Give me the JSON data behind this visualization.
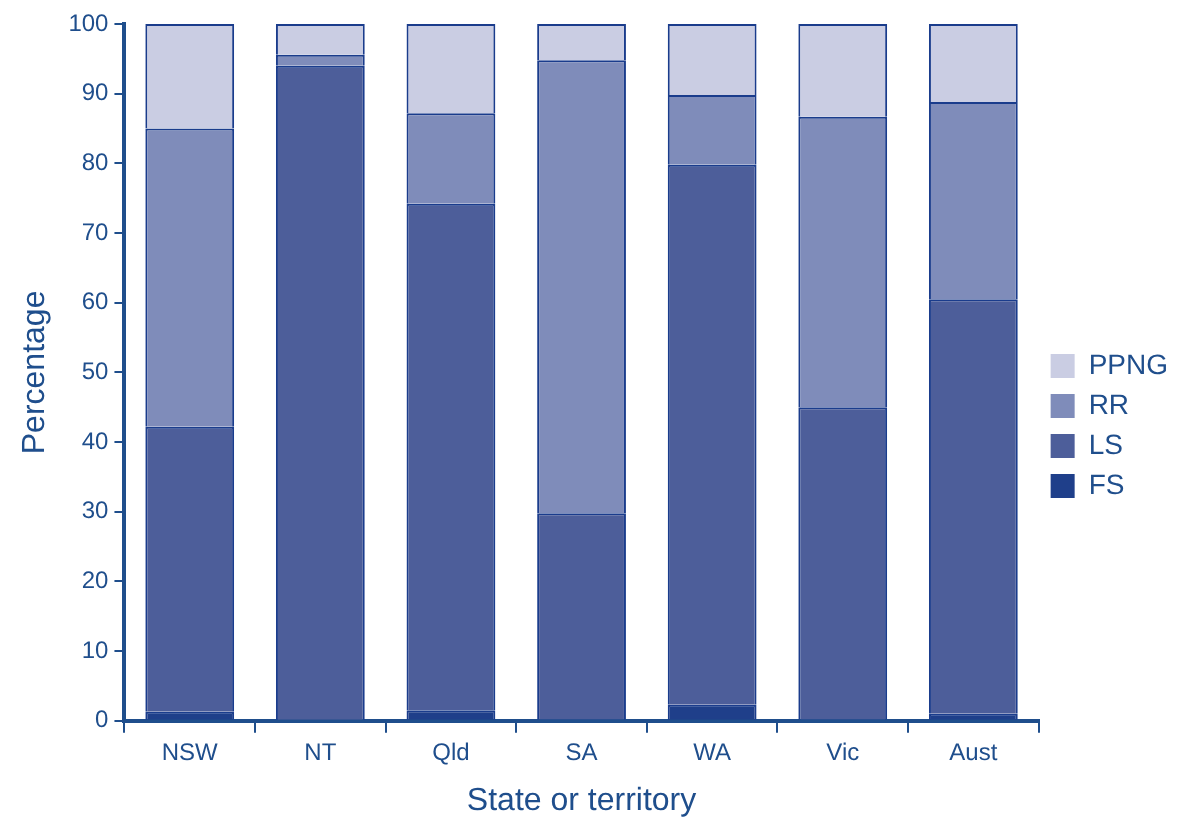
{
  "chart_data": {
    "type": "bar",
    "stacked": true,
    "xlabel": "State or territory",
    "ylabel": "Percentage",
    "categories": [
      "NSW",
      "NT",
      "Qld",
      "SA",
      "WA",
      "Vic",
      "Aust"
    ],
    "series": [
      {
        "name": "FS",
        "color": "#1f3f8a",
        "values": [
          1.3,
          null,
          1.5,
          0.2,
          2.3,
          0.2,
          1.0
        ]
      },
      {
        "name": "LS",
        "color": "#4d5e9a",
        "values": [
          40.9,
          94,
          72.7,
          29.6,
          77.5,
          44.8,
          59.5
        ]
      },
      {
        "name": "RR",
        "color": "#7f8cba",
        "values": [
          42.8,
          1.6,
          13,
          65,
          10,
          41.7,
          28.3
        ]
      },
      {
        "name": "PPNG",
        "color": "#cacde3",
        "values": [
          15,
          4.4,
          12.8,
          5.2,
          10.2,
          13.3,
          11.2
        ]
      }
    ],
    "ylim": [
      0,
      100
    ],
    "yticks": [
      0,
      10,
      20,
      30,
      40,
      50,
      60,
      70,
      80,
      90,
      100
    ],
    "grid": false,
    "legend": "right"
  }
}
